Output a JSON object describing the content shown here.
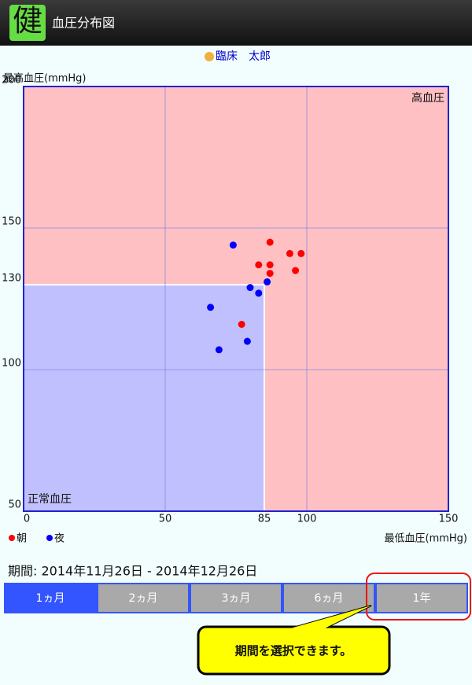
{
  "app": {
    "title": "健",
    "screen_title": "血圧分布図",
    "user_name": "臨床　太郎",
    "period": "期間: 2014年11月26日 - 2014年12月26日",
    "buttons": [
      "1ヵ月",
      "2ヵ月",
      "3ヵ月",
      "6ヵ月",
      "1年"
    ],
    "selected": 0,
    "callout": "期間を選択できます。"
  },
  "chart_data": {
    "type": "scatter",
    "ylabel": "最高血圧(mmHg)",
    "xlabel": "最低血圧(mmHg)",
    "xlim": [
      0,
      150
    ],
    "ylim": [
      50,
      200
    ],
    "xticks": [
      0,
      50,
      85,
      100,
      150
    ],
    "yticks": [
      50,
      100,
      130,
      150,
      200
    ],
    "grid_x": [
      50,
      100
    ],
    "grid_y": [
      100,
      150
    ],
    "regions": [
      {
        "label": "高血圧",
        "xlim": [
          0,
          150
        ],
        "ylim": [
          50,
          200
        ],
        "color": "#ffc0c4"
      },
      {
        "label": "正常血圧",
        "xlim": [
          0,
          85
        ],
        "ylim": [
          50,
          130
        ],
        "color": "#c0c0ff"
      }
    ],
    "series": [
      {
        "name": "朝",
        "color": "#ff0000",
        "x": [
          87,
          83,
          87,
          87,
          94,
          98,
          96,
          77
        ],
        "values": [
          145,
          137,
          137,
          134,
          141,
          141,
          135,
          116
        ]
      },
      {
        "name": "夜",
        "color": "#0000ff",
        "x": [
          74,
          80,
          83,
          86,
          66,
          79,
          69
        ],
        "values": [
          144,
          129,
          127,
          131,
          122,
          110,
          107
        ]
      }
    ]
  }
}
